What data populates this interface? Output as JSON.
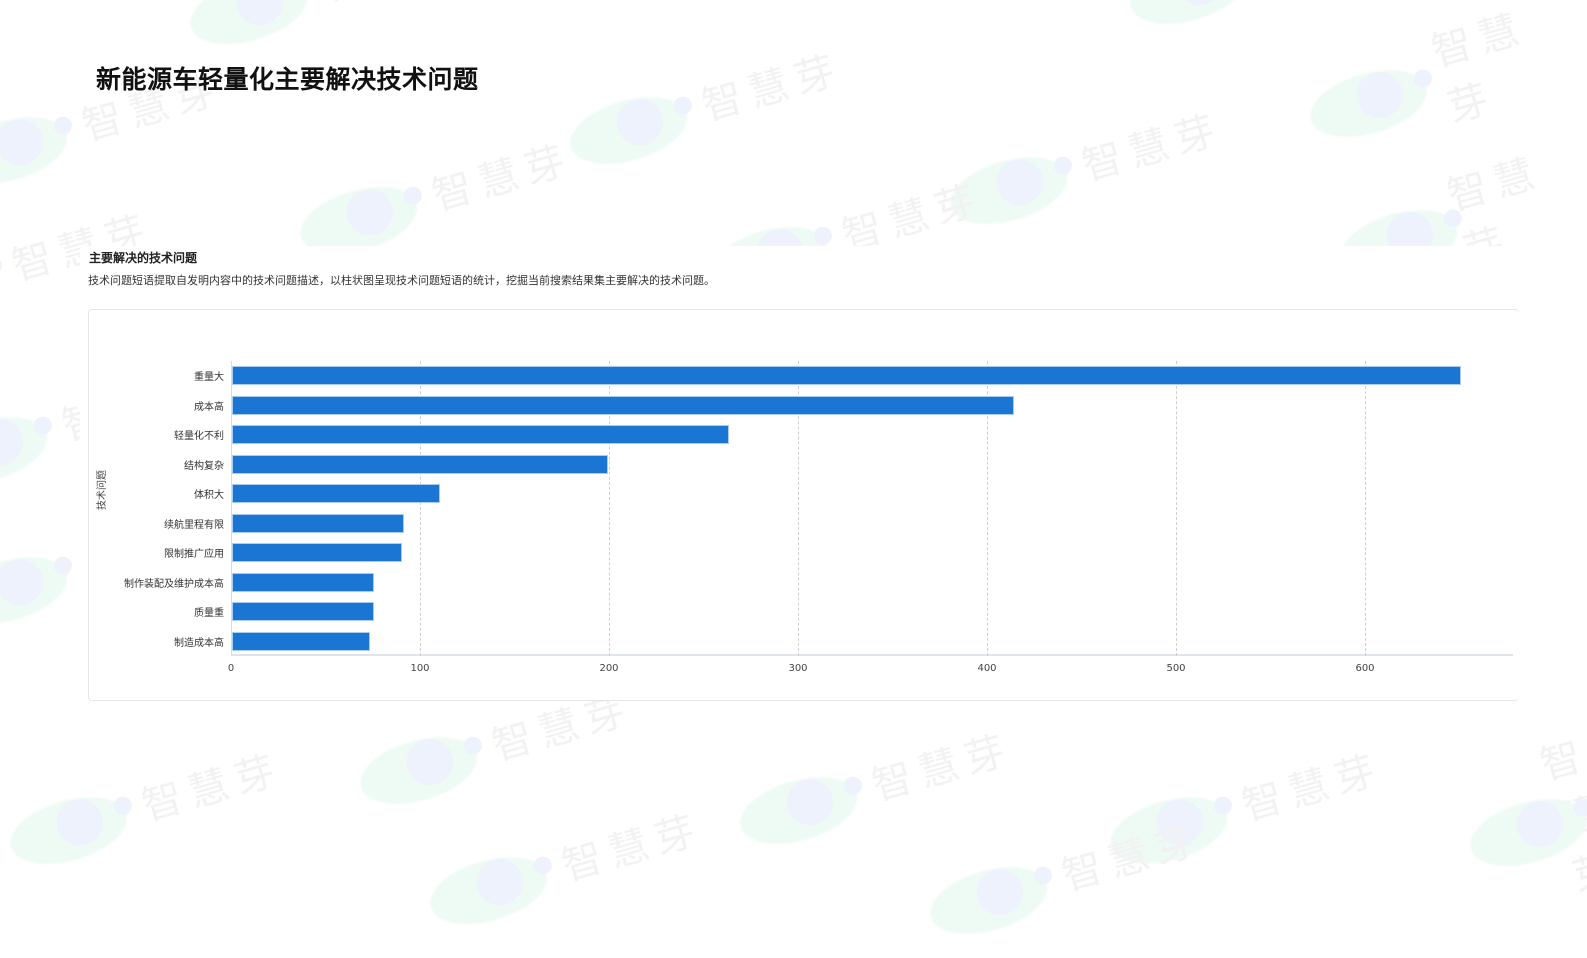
{
  "page": {
    "title": "新能源车轻量化主要解决技术问题"
  },
  "section": {
    "title": "主要解决的技术问题",
    "description": "技术问题短语提取自发明内容中的技术问题描述，以柱状图呈现技术问题短语的统计，挖掘当前搜索结果集主要解决的技术问题。"
  },
  "watermark": {
    "text": "智慧芽",
    "icon": "zhihuiya-logo-icon"
  },
  "colors": {
    "bar": "#1a76d2",
    "bar_border": "#a9cdf0",
    "gridline": "#cfcfcf",
    "title": "#111111"
  },
  "chart_data": {
    "type": "bar",
    "orientation": "horizontal",
    "title": "主要解决的技术问题",
    "xlabel": "",
    "ylabel": "技术问题",
    "categories": [
      "重量大",
      "成本高",
      "轻量化不利",
      "结构复杂",
      "体积大",
      "续航里程有限",
      "限制推广应用",
      "制作装配及维护成本高",
      "质量重",
      "制造成本高"
    ],
    "values": [
      650,
      414,
      263,
      199,
      110,
      91,
      90,
      75,
      75,
      73
    ],
    "xlim": [
      0,
      680
    ],
    "x_ticks": [
      "0",
      "100",
      "200",
      "300",
      "400",
      "500",
      "600"
    ],
    "grid": true,
    "grid_style": "dashed-vertical",
    "legend": "none"
  }
}
